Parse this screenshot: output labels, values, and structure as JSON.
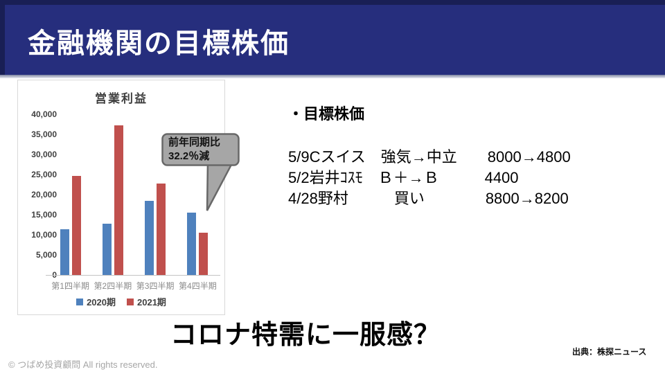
{
  "slide": {
    "title": "金融機関の目標株価",
    "message": "コロナ特需に一服感？",
    "source": "出典：株探ニュース",
    "copyright": "© つばめ投資顧問 All rights reserved."
  },
  "target_prices": {
    "heading": "・目標株価",
    "lines": [
      "5/9Cスイス　強気→中立　　8000→4800",
      "5/2岩井ｺｽﾓ　Ｂ＋→Ｂ　　　4400",
      "4/28野村　　　買い　　　　8800→8200"
    ]
  },
  "callout": {
    "line1": "前年同期比",
    "line2": "32.2％減"
  },
  "chart_data": {
    "type": "bar",
    "title": "営業利益",
    "categories": [
      "第1四半期",
      "第2四半期",
      "第3四半期",
      "第4四半期"
    ],
    "series": [
      {
        "name": "2020期",
        "color": "#4f81bd",
        "values": [
          11300,
          12700,
          18500,
          15500
        ]
      },
      {
        "name": "2021期",
        "color": "#c0504d",
        "values": [
          24600,
          37200,
          22700,
          10500
        ]
      }
    ],
    "xlabel": "",
    "ylabel": "",
    "ylim": [
      0,
      40000
    ],
    "ytick_step": 5000,
    "ytick_labels": [
      "40,000",
      "35,000",
      "30,000",
      "25,000",
      "20,000",
      "15,000",
      "10,000",
      "5,000",
      "0"
    ],
    "legend_position": "bottom",
    "grid": false,
    "annotation": "前年同期比 32.2％減 (第4四半期 2021期)"
  },
  "colors": {
    "header_bg": "#262e7d",
    "header_edge": "#191f55",
    "callout_fill": "#a6a6a6",
    "callout_border": "#686868",
    "bar_blue": "#4f81bd",
    "bar_red": "#c0504d"
  }
}
